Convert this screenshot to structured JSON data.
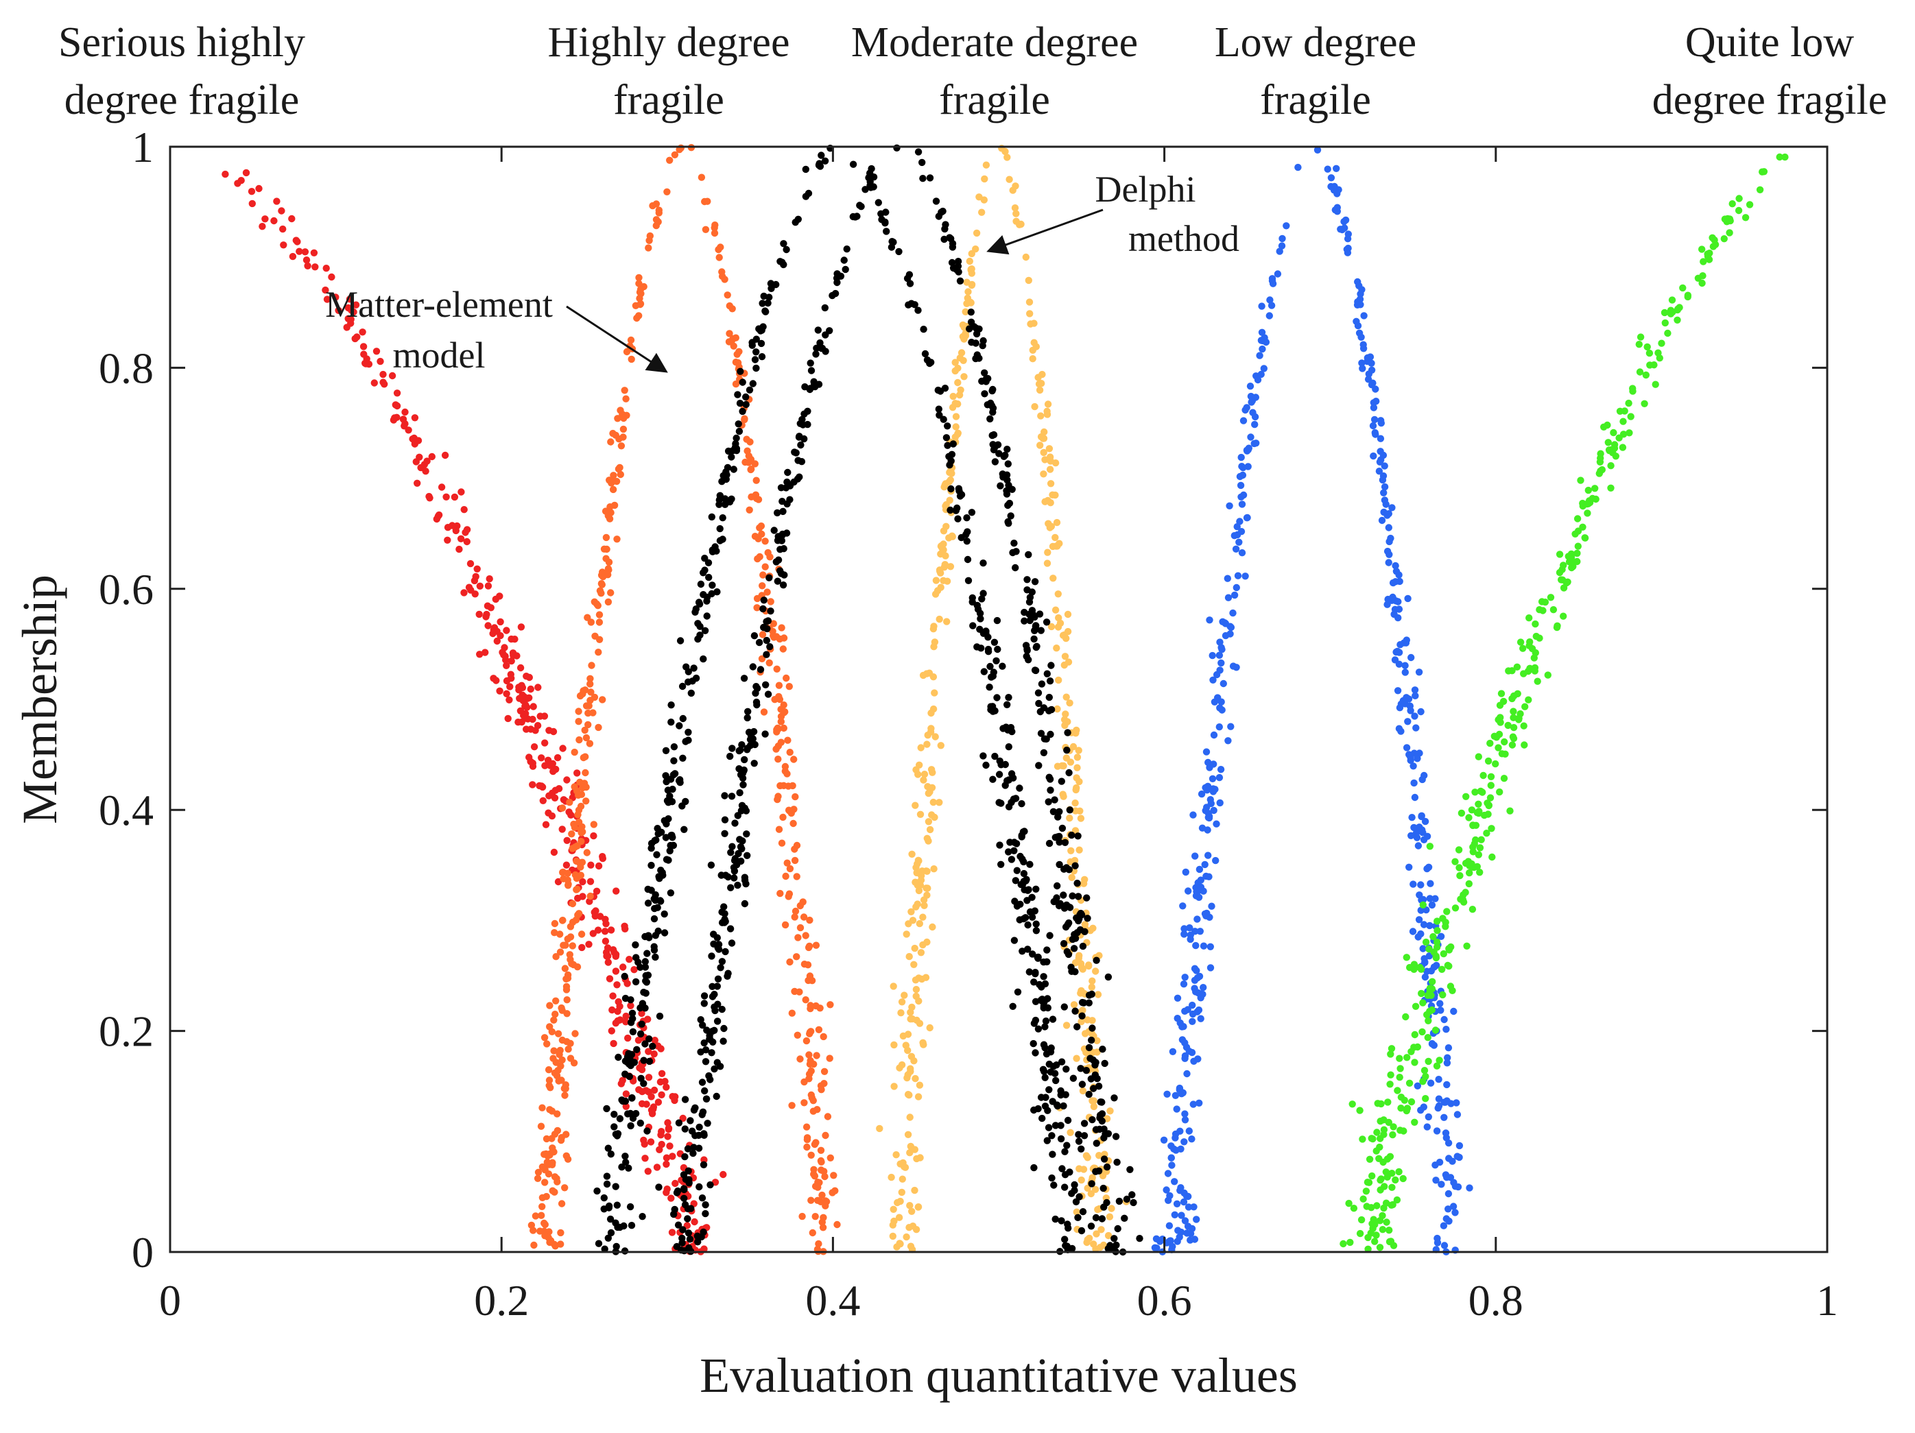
{
  "chart_data": {
    "type": "scatter",
    "title": "",
    "xlabel": "Evaluation quantitative values",
    "ylabel": "Membership",
    "xlim": [
      0,
      1
    ],
    "ylim": [
      0,
      1
    ],
    "xticks": [
      0,
      0.2,
      0.4,
      0.6,
      0.8,
      1
    ],
    "xtick_labels": [
      "0",
      "0.2",
      "0.4",
      "0.6",
      "0.8",
      "1"
    ],
    "yticks": [
      0,
      0.2,
      0.4,
      0.6,
      0.8,
      1
    ],
    "ytick_labels": [
      "0",
      "0.2",
      "0.4",
      "0.6",
      "0.8",
      "1"
    ],
    "grid": false,
    "category_labels": [
      {
        "lines": [
          "Serious highly",
          "degree fragile"
        ],
        "x": 0.0
      },
      {
        "lines": [
          "Highly degree",
          "fragile"
        ],
        "x": 0.3
      },
      {
        "lines": [
          "Moderate degree",
          "fragile"
        ],
        "x": 0.5
      },
      {
        "lines": [
          "Low degree",
          "fragile"
        ],
        "x": 0.69
      },
      {
        "lines": [
          "Quite low",
          "degree fragile"
        ],
        "x": 1.0
      }
    ],
    "annotations": [
      {
        "lines": [
          "Matter-element",
          "model"
        ],
        "arrow_to": [
          0.3,
          0.8
        ]
      },
      {
        "lines": [
          "Delphi",
          "method"
        ],
        "arrow_to": [
          0.49,
          0.9
        ]
      }
    ],
    "series": [
      {
        "name": "Serious highly degree fragile",
        "color": "#ee2222",
        "shape": "left",
        "center": 0.0,
        "width": 0.32,
        "n": 430,
        "noise": 0.06
      },
      {
        "name": "Highly degree fragile",
        "color": "#ff6a2c",
        "shape": "peak",
        "center": 0.31,
        "width": 0.085,
        "n": 540,
        "noise": 0.06
      },
      {
        "name": "Moderate degree fragile",
        "color": "#ffc35c",
        "shape": "peak",
        "center": 0.5,
        "width": 0.06,
        "n": 480,
        "noise": 0.06
      },
      {
        "name": "Low degree fragile",
        "color": "#2a66f2",
        "shape": "peak",
        "center": 0.69,
        "width": 0.085,
        "n": 540,
        "noise": 0.06
      },
      {
        "name": "Quite low degree fragile",
        "color": "#44ee22",
        "shape": "right",
        "center": 1.0,
        "width": 0.28,
        "n": 400,
        "noise": 0.06
      },
      {
        "name": "Matter-element model",
        "color": "#000000",
        "shape": "peak",
        "center": 0.405,
        "width": 0.14,
        "n": 560,
        "noise": 0.05
      },
      {
        "name": "Delphi method",
        "color": "#000000",
        "shape": "peak",
        "center": 0.44,
        "width": 0.13,
        "n": 560,
        "noise": 0.05
      }
    ]
  }
}
